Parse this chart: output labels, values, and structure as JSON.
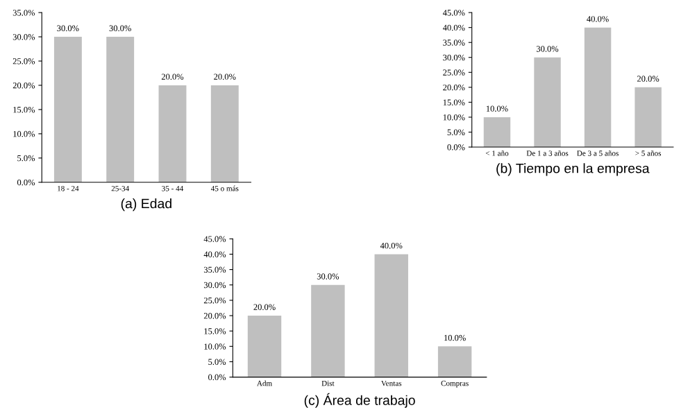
{
  "chart_data": [
    {
      "type": "bar",
      "xlabel": "(a) Edad",
      "categories": [
        "18 - 24",
        "25-34",
        "35 - 44",
        "45 o más"
      ],
      "values": [
        30,
        30,
        20,
        20
      ],
      "color": "#bfbfbf",
      "value_labels": [
        "30.0%",
        "30.0%",
        "20.0%",
        "20.0%"
      ],
      "ylim": [
        0,
        35
      ],
      "yticks": [
        {
          "value": 0,
          "label": "0.0%"
        },
        {
          "value": 5,
          "label": "5.0%"
        },
        {
          "value": 10,
          "label": "10.0%"
        },
        {
          "value": 15,
          "label": "15.0%"
        },
        {
          "value": 20,
          "label": "20.0%"
        },
        {
          "value": 25,
          "label": "25.0%"
        },
        {
          "value": 30,
          "label": "30.0%"
        },
        {
          "value": 35,
          "label": "35.0%"
        }
      ],
      "grid": false,
      "legend": false
    },
    {
      "type": "bar",
      "xlabel": "(b) Tiempo en la empresa",
      "categories": [
        "< 1 año",
        "De 1 a 3 años",
        "De 3 a 5 años",
        "> 5 años"
      ],
      "values": [
        10,
        30,
        40,
        20
      ],
      "color": "#bfbfbf",
      "value_labels": [
        "10.0%",
        "30.0%",
        "40.0%",
        "20.0%"
      ],
      "ylim": [
        0,
        45
      ],
      "yticks": [
        {
          "value": 0,
          "label": "0.0%"
        },
        {
          "value": 5,
          "label": "5.0%"
        },
        {
          "value": 10,
          "label": "10.0%"
        },
        {
          "value": 15,
          "label": "15.0%"
        },
        {
          "value": 20,
          "label": "20.0%"
        },
        {
          "value": 25,
          "label": "25.0%"
        },
        {
          "value": 30,
          "label": "30.0%"
        },
        {
          "value": 35,
          "label": "35.0%"
        },
        {
          "value": 40,
          "label": "40.0%"
        },
        {
          "value": 45,
          "label": "45.0%"
        }
      ],
      "grid": false,
      "legend": false
    },
    {
      "type": "bar",
      "xlabel": "(c) Área de trabajo",
      "categories": [
        "Adm",
        "Dist",
        "Ventas",
        "Compras"
      ],
      "values": [
        20,
        30,
        40,
        10
      ],
      "color": "#bfbfbf",
      "value_labels": [
        "20.0%",
        "30.0%",
        "40.0%",
        "10.0%"
      ],
      "ylim": [
        0,
        45
      ],
      "yticks": [
        {
          "value": 0,
          "label": "0.0%"
        },
        {
          "value": 5,
          "label": "5.0%"
        },
        {
          "value": 10,
          "label": "10.0%"
        },
        {
          "value": 15,
          "label": "15.0%"
        },
        {
          "value": 20,
          "label": "20.0%"
        },
        {
          "value": 25,
          "label": "25.0%"
        },
        {
          "value": 30,
          "label": "30.0%"
        },
        {
          "value": 35,
          "label": "35.0%"
        },
        {
          "value": 40,
          "label": "40.0%"
        },
        {
          "value": 45,
          "label": "45.0%"
        }
      ],
      "grid": false,
      "legend": false
    }
  ]
}
